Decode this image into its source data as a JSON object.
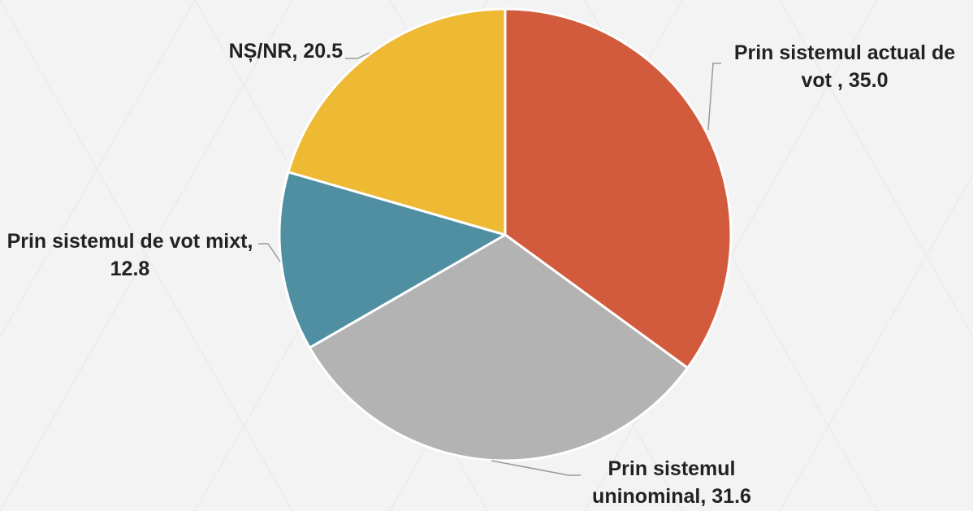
{
  "chart_data": {
    "type": "pie",
    "categories": [
      "Prin sistemul actual de vot",
      "Prin sistemul uninominal",
      "Prin sistemul de vot mixt",
      "NȘ/NR"
    ],
    "values": [
      35.0,
      31.6,
      12.8,
      20.5
    ],
    "value_labels": [
      " , 35.0",
      ", 31.6",
      ", 12.8",
      ", 20.5"
    ],
    "colors": [
      "#d35b3d",
      "#b3b3b3",
      "#4f8fa1",
      "#eeb933"
    ]
  }
}
